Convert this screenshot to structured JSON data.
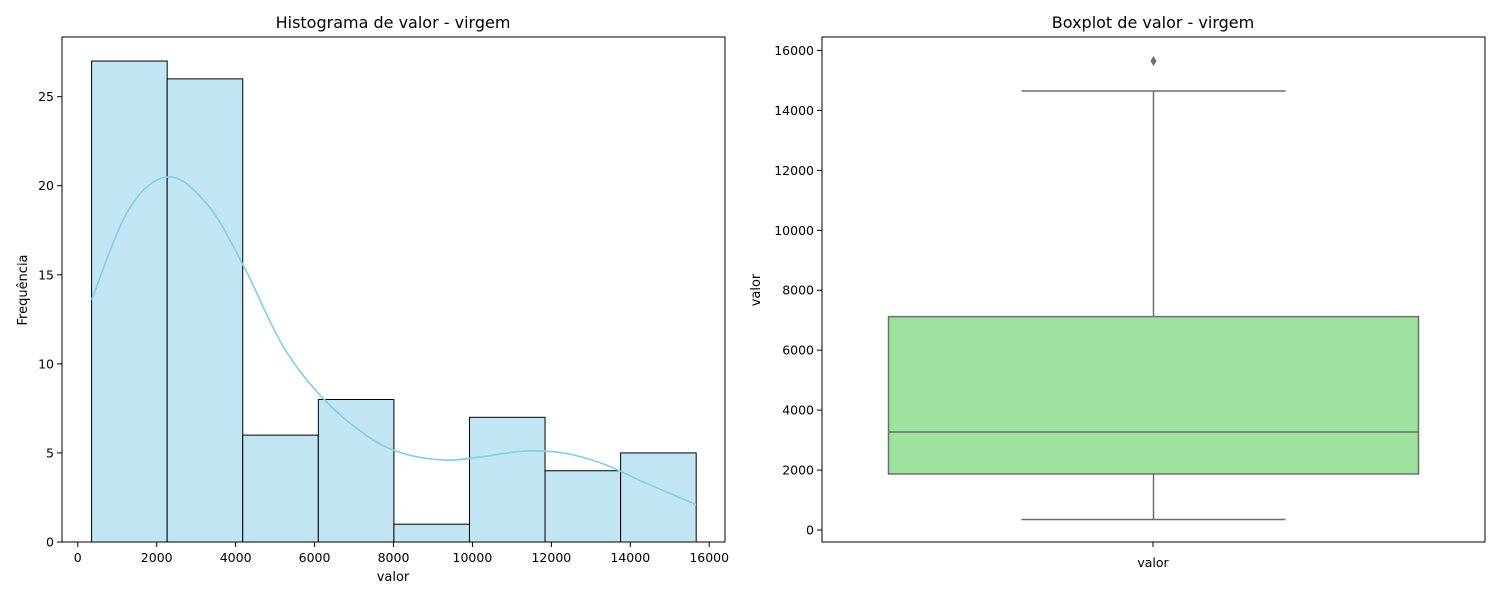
{
  "chart_data": [
    {
      "type": "bar",
      "subtype": "histogram",
      "title": "Histograma de valor - virgem",
      "xlabel": "valor",
      "ylabel": "Frequência",
      "xlim": [
        -400,
        16400
      ],
      "ylim": [
        0,
        28.35
      ],
      "x_ticks": [
        "0",
        "2000",
        "4000",
        "6000",
        "8000",
        "10000",
        "12000",
        "14000",
        "16000"
      ],
      "y_ticks": [
        "0",
        "5",
        "10",
        "15",
        "20",
        "25"
      ],
      "bin_edges": [
        350,
        2265,
        4180,
        6095,
        8010,
        9925,
        11840,
        13755,
        15670
      ],
      "values": [
        27,
        26,
        6,
        8,
        1,
        7,
        4,
        5
      ],
      "kde": {
        "x": [
          350,
          1300,
          2300,
          3300,
          4200,
          5200,
          6200,
          7300,
          8200,
          9300,
          10300,
          11300,
          12300,
          13300,
          14300,
          15670
        ],
        "y": [
          13.6,
          18.7,
          20.5,
          18.9,
          15.5,
          11.0,
          8.1,
          6.0,
          5.0,
          4.6,
          4.8,
          5.1,
          5.0,
          4.4,
          3.4,
          2.1
        ]
      },
      "bar_color": "#c2e5f3",
      "kde_color": "#87ceeb",
      "grid": false,
      "legend": false
    },
    {
      "type": "boxplot",
      "title": "Boxplot de valor - virgem",
      "xlabel": "valor",
      "ylabel": "valor",
      "category": "valor",
      "ylim": [
        -400,
        16450
      ],
      "y_ticks": [
        "0",
        "2000",
        "4000",
        "6000",
        "8000",
        "10000",
        "12000",
        "14000",
        "16000"
      ],
      "whisker_low": 350,
      "q1": 1870,
      "median": 3270,
      "q3": 7120,
      "whisker_high": 14650,
      "outliers": [
        15650
      ],
      "box_color": "#9de39d",
      "line_color": "#6e6e6e",
      "grid": false,
      "legend": false
    }
  ]
}
